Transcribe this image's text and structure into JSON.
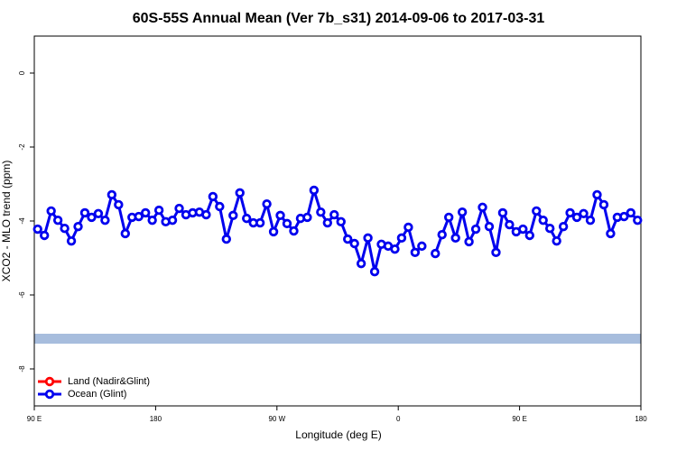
{
  "chart_data": {
    "type": "line",
    "title": "60S-55S Annual Mean (Ver 7b_s31)   2014-09-06 to 2017-03-31",
    "x_label": "Longitude (deg E)",
    "y_label": "XCO2 - MLO trend (ppm)",
    "x": [
      92.5,
      97.5,
      102.5,
      107.5,
      112.5,
      117.5,
      122.5,
      127.5,
      132.5,
      137.5,
      142.5,
      147.5,
      152.5,
      157.5,
      162.5,
      167.5,
      172.5,
      177.5,
      182.5,
      187.5,
      192.5,
      197.5,
      202.5,
      207.5,
      212.5,
      217.5,
      222.5,
      227.5,
      232.5,
      237.5,
      242.5,
      247.5,
      252.5,
      257.5,
      262.5,
      267.5,
      272.5,
      277.5,
      282.5,
      287.5,
      292.5,
      297.5,
      302.5,
      307.5,
      312.5,
      317.5,
      322.5,
      327.5,
      332.5,
      337.5,
      342.5,
      347.5,
      352.5,
      357.5,
      362.5,
      367.5,
      372.5,
      377.5,
      382.5,
      387.5,
      392.5,
      397.5,
      402.5,
      407.5,
      412.5,
      417.5,
      422.5,
      427.5,
      432.5,
      437.5,
      442.5,
      447.5,
      452.5,
      457.5,
      462.5,
      467.5,
      472.5,
      477.5,
      482.5,
      487.5,
      492.5,
      497.5,
      502.5,
      507.5,
      512.5,
      517.5,
      522.5,
      527.5,
      532.5,
      537.5
    ],
    "series": [
      {
        "name": "Land (Nadir&Glint)",
        "color": "#ff0000",
        "values": [
          null,
          null,
          null,
          null,
          null,
          null,
          null,
          null,
          null,
          null,
          null,
          null,
          null,
          null,
          null,
          null,
          null,
          null,
          null,
          null,
          null,
          null,
          null,
          null,
          null,
          null,
          null,
          null,
          null,
          null,
          null,
          null,
          null,
          null,
          null,
          null,
          null,
          null,
          null,
          null,
          null,
          null,
          null,
          null,
          null,
          null,
          null,
          null,
          null,
          null,
          null,
          null,
          null,
          null,
          null,
          null,
          null,
          null,
          null,
          null,
          null,
          null,
          null,
          null,
          null,
          null,
          null,
          null,
          null,
          null,
          null,
          null,
          null,
          null,
          null,
          null,
          null,
          null,
          null,
          null,
          null,
          null,
          null,
          null,
          null,
          null,
          null,
          null,
          null,
          null
        ]
      },
      {
        "name": "Ocean (Glint)",
        "color": "#0000ee",
        "values": [
          -4.22,
          -4.39,
          -3.73,
          -3.98,
          -4.2,
          -4.54,
          -4.15,
          -3.78,
          -3.9,
          -3.8,
          -3.98,
          -3.29,
          -3.56,
          -4.34,
          -3.9,
          -3.88,
          -3.78,
          -3.98,
          -3.71,
          -4.02,
          -3.98,
          -3.66,
          -3.83,
          -3.78,
          -3.76,
          -3.83,
          -3.34,
          -3.61,
          -4.49,
          -3.85,
          -3.24,
          -3.93,
          -4.05,
          -4.05,
          -3.54,
          -4.29,
          -3.85,
          -4.07,
          -4.27,
          -3.93,
          -3.9,
          -3.17,
          -3.76,
          -4.05,
          -3.83,
          -4.02,
          -4.49,
          -4.61,
          -5.15,
          -4.46,
          -5.37,
          -4.63,
          -4.68,
          -4.76,
          -4.46,
          -4.17,
          -4.85,
          -4.68,
          null,
          -4.88,
          -4.37,
          -3.9,
          -4.46,
          -3.76,
          -4.56,
          -4.22,
          -3.63,
          -4.15,
          -4.85,
          -3.78,
          -4.1,
          -4.29,
          -4.22,
          -4.39,
          -3.73,
          -3.98,
          -4.2,
          -4.54,
          -4.15,
          -3.78,
          -3.9,
          -3.8,
          -3.98,
          -3.29,
          -3.56,
          -4.34,
          -3.9,
          -3.88,
          -3.78,
          -3.98
        ]
      }
    ],
    "xlim": [
      90,
      540
    ],
    "xticks": [
      {
        "value": 90,
        "label": "90 E"
      },
      180,
      {
        "value": 270,
        "label": "90 W"
      },
      {
        "value": 360,
        "label": "0"
      },
      {
        "value": 450,
        "label": "90 E"
      },
      {
        "value": 540,
        "label": "180"
      }
    ],
    "ylim": [
      -9,
      1
    ],
    "yticks": [
      0,
      -2,
      -4,
      -6,
      -8
    ],
    "legend": "bottom-left"
  }
}
